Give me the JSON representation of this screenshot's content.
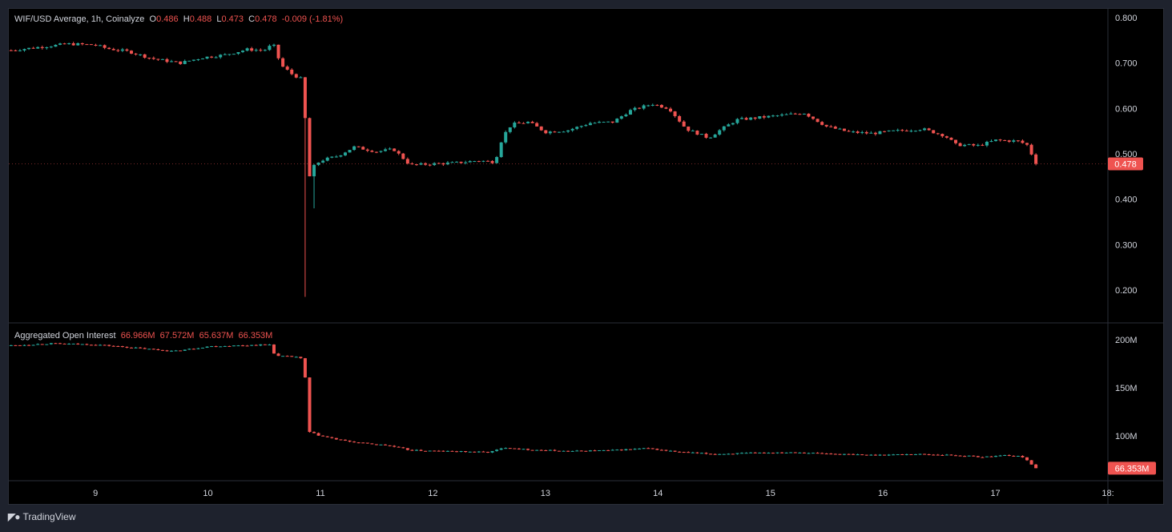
{
  "price_legend": {
    "symbol": "WIF/USD Average, 1h, Coinalyze",
    "o_key": "O",
    "o": "0.486",
    "h_key": "H",
    "h": "0.488",
    "l_key": "L",
    "l": "0.473",
    "c_key": "C",
    "c": "0.478",
    "change": "-0.009 (-1.81%)"
  },
  "oi_legend": {
    "title": "Aggregated Open Interest",
    "v1": "66.966M",
    "v2": "67.572M",
    "v3": "65.637M",
    "v4": "66.353M"
  },
  "brand": {
    "icon": "tradingview-logo-icon",
    "name": "TradingView"
  },
  "colors": {
    "up": "#26a69a",
    "down": "#ef5350",
    "background": "#000000",
    "panel": "#1e222d"
  },
  "chart_data": [
    {
      "type": "candlestick",
      "title": "WIF/USD Average, 1h, Coinalyze",
      "ylim": [
        0.16,
        0.81
      ],
      "y_ticks": [
        "0.800",
        "0.700",
        "0.600",
        "0.500",
        "0.400",
        "0.300",
        "0.200"
      ],
      "y_tick_values": [
        0.8,
        0.7,
        0.6,
        0.5,
        0.4,
        0.3,
        0.2
      ],
      "last_price_label": "0.478",
      "last_price": 0.478,
      "x_ticks": [
        "9",
        "10",
        "11",
        "12",
        "13",
        "14",
        "15",
        "16",
        "17",
        "18:"
      ],
      "x_tick_days": [
        9,
        10,
        11,
        12,
        13,
        14,
        15,
        16,
        17,
        18
      ],
      "x_range_days": [
        8.23,
        18.0
      ],
      "close_path": [
        [
          8.25,
          0.728
        ],
        [
          8.5,
          0.735
        ],
        [
          8.75,
          0.742
        ],
        [
          9.0,
          0.74
        ],
        [
          9.1,
          0.732
        ],
        [
          9.3,
          0.725
        ],
        [
          9.5,
          0.71
        ],
        [
          9.75,
          0.7
        ],
        [
          9.95,
          0.712
        ],
        [
          10.15,
          0.718
        ],
        [
          10.35,
          0.73
        ],
        [
          10.5,
          0.728
        ],
        [
          10.58,
          0.742
        ],
        [
          10.65,
          0.695
        ],
        [
          10.75,
          0.675
        ],
        [
          10.83,
          0.665
        ],
        [
          10.86,
          0.6
        ],
        [
          10.89,
          0.44
        ],
        [
          10.93,
          0.47
        ],
        [
          11.0,
          0.485
        ],
        [
          11.15,
          0.495
        ],
        [
          11.3,
          0.515
        ],
        [
          11.5,
          0.505
        ],
        [
          11.65,
          0.51
        ],
        [
          11.8,
          0.475
        ],
        [
          12.0,
          0.478
        ],
        [
          12.2,
          0.48
        ],
        [
          12.4,
          0.485
        ],
        [
          12.55,
          0.482
        ],
        [
          12.62,
          0.538
        ],
        [
          12.7,
          0.565
        ],
        [
          12.85,
          0.57
        ],
        [
          13.0,
          0.548
        ],
        [
          13.2,
          0.552
        ],
        [
          13.4,
          0.568
        ],
        [
          13.6,
          0.57
        ],
        [
          13.75,
          0.595
        ],
        [
          13.95,
          0.61
        ],
        [
          14.1,
          0.6
        ],
        [
          14.25,
          0.555
        ],
        [
          14.45,
          0.535
        ],
        [
          14.55,
          0.552
        ],
        [
          14.7,
          0.575
        ],
        [
          14.9,
          0.58
        ],
        [
          15.1,
          0.585
        ],
        [
          15.3,
          0.59
        ],
        [
          15.5,
          0.56
        ],
        [
          15.7,
          0.548
        ],
        [
          15.9,
          0.545
        ],
        [
          16.1,
          0.55
        ],
        [
          16.35,
          0.555
        ],
        [
          16.55,
          0.54
        ],
        [
          16.65,
          0.52
        ],
        [
          16.85,
          0.518
        ],
        [
          17.0,
          0.53
        ],
        [
          17.2,
          0.528
        ],
        [
          17.28,
          0.52
        ],
        [
          17.32,
          0.5
        ],
        [
          17.36,
          0.478
        ]
      ],
      "spike_low": {
        "day": 10.88,
        "value": 0.185
      }
    },
    {
      "type": "candlestick",
      "title": "Aggregated Open Interest",
      "ylim": [
        62,
        218
      ],
      "y_ticks": [
        "200M",
        "150M",
        "100M"
      ],
      "y_tick_values": [
        200,
        150,
        100
      ],
      "last_value_label": "66.353M",
      "last_value": 66.353,
      "close_path": [
        [
          8.25,
          194
        ],
        [
          8.6,
          196
        ],
        [
          9.0,
          195
        ],
        [
          9.3,
          192
        ],
        [
          9.7,
          188
        ],
        [
          10.0,
          193
        ],
        [
          10.3,
          194
        ],
        [
          10.55,
          195
        ],
        [
          10.6,
          183
        ],
        [
          10.82,
          182
        ],
        [
          10.86,
          167
        ],
        [
          10.9,
          104
        ],
        [
          11.0,
          100
        ],
        [
          11.2,
          95
        ],
        [
          11.4,
          92
        ],
        [
          11.6,
          90
        ],
        [
          11.8,
          85
        ],
        [
          12.1,
          84
        ],
        [
          12.5,
          83
        ],
        [
          12.65,
          88
        ],
        [
          12.8,
          86
        ],
        [
          13.2,
          84
        ],
        [
          13.6,
          85
        ],
        [
          13.9,
          87
        ],
        [
          14.2,
          83
        ],
        [
          14.5,
          81
        ],
        [
          14.8,
          82
        ],
        [
          15.2,
          83
        ],
        [
          15.6,
          81
        ],
        [
          15.9,
          80
        ],
        [
          16.3,
          81
        ],
        [
          16.6,
          80
        ],
        [
          16.9,
          78
        ],
        [
          17.1,
          80
        ],
        [
          17.25,
          78
        ],
        [
          17.36,
          66.353
        ]
      ]
    }
  ]
}
